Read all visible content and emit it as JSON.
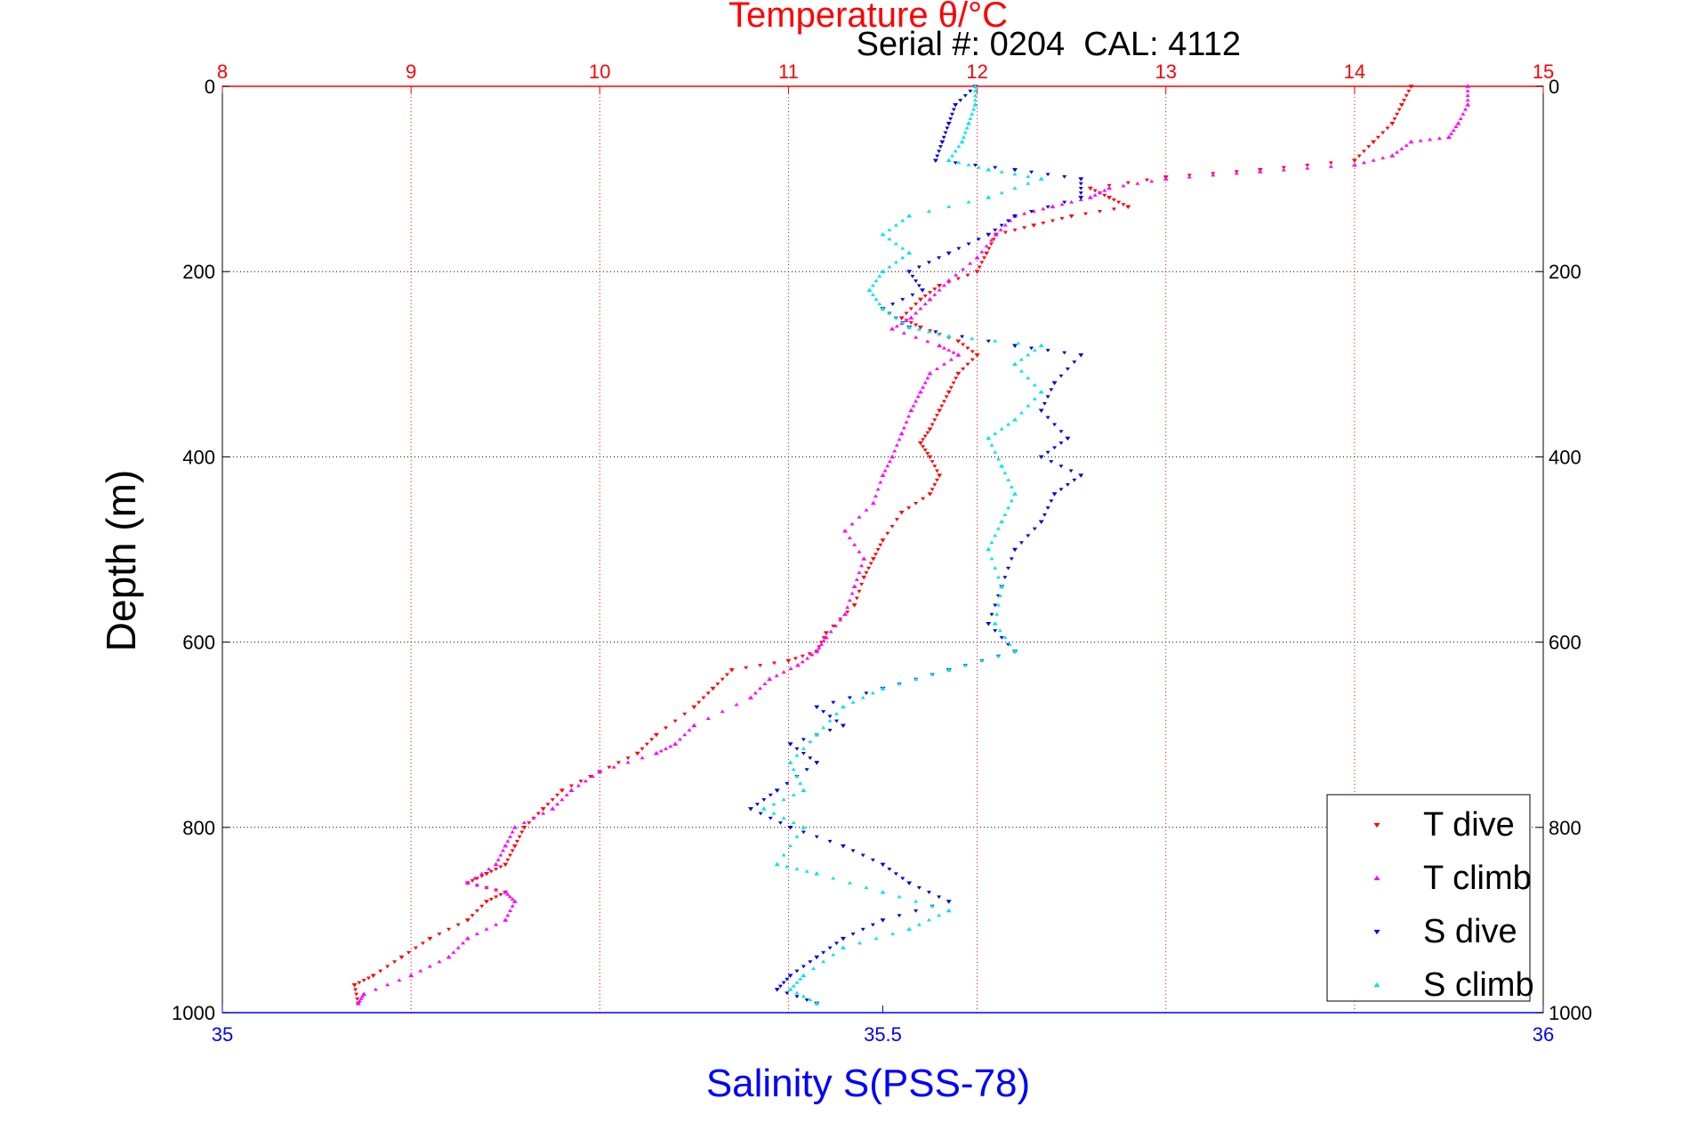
{
  "chart_data": {
    "type": "scatter",
    "title": "Temperature θ/°C",
    "annotation": "Serial #: 0204  CAL: 4112",
    "xlabel": "Salinity S(PSS-78)",
    "ylabel": "Depth (m)",
    "temperature_axis": {
      "range": [
        8,
        15
      ],
      "ticks": [
        "8",
        "9",
        "10",
        "11",
        "12",
        "13",
        "14",
        "15"
      ]
    },
    "salinity_axis": {
      "range": [
        35,
        36
      ],
      "ticks": [
        "35",
        "35.5",
        "36"
      ]
    },
    "depth_axis": {
      "range": [
        0,
        1000
      ],
      "reversed": true,
      "ticks": [
        "0",
        "200",
        "400",
        "600",
        "800",
        "1000"
      ]
    },
    "grid": true,
    "legend_position": "bottom-right",
    "colors": {
      "T dive": "#ff0000",
      "T climb": "#ff00ff",
      "S dive": "#0000dd",
      "S climb": "#00e5e5",
      "temperature_axis": "#ff0000",
      "salinity_axis": "#0000ff"
    },
    "series": [
      {
        "name": "T dive",
        "axis": "temperature",
        "marker": "down-triangle",
        "points": [
          [
            14.3,
            0
          ],
          [
            14.25,
            20
          ],
          [
            14.2,
            40
          ],
          [
            14.1,
            60
          ],
          [
            14.0,
            80
          ],
          [
            13.5,
            90
          ],
          [
            13.0,
            98
          ],
          [
            12.6,
            110
          ],
          [
            12.7,
            120
          ],
          [
            12.8,
            130
          ],
          [
            12.5,
            140
          ],
          [
            12.3,
            150
          ],
          [
            12.1,
            160
          ],
          [
            12.05,
            180
          ],
          [
            12.0,
            200
          ],
          [
            11.8,
            215
          ],
          [
            11.7,
            230
          ],
          [
            11.6,
            250
          ],
          [
            11.7,
            260
          ],
          [
            11.9,
            275
          ],
          [
            12.0,
            290
          ],
          [
            11.9,
            310
          ],
          [
            11.85,
            330
          ],
          [
            11.8,
            350
          ],
          [
            11.75,
            370
          ],
          [
            11.7,
            385
          ],
          [
            11.75,
            400
          ],
          [
            11.8,
            420
          ],
          [
            11.75,
            440
          ],
          [
            11.6,
            460
          ],
          [
            11.5,
            490
          ],
          [
            11.45,
            510
          ],
          [
            11.4,
            530
          ],
          [
            11.35,
            560
          ],
          [
            11.2,
            590
          ],
          [
            11.15,
            610
          ],
          [
            11.0,
            620
          ],
          [
            10.7,
            630
          ],
          [
            10.6,
            650
          ],
          [
            10.5,
            670
          ],
          [
            10.3,
            700
          ],
          [
            10.2,
            720
          ],
          [
            10.0,
            740
          ],
          [
            9.8,
            760
          ],
          [
            9.7,
            780
          ],
          [
            9.6,
            800
          ],
          [
            9.55,
            820
          ],
          [
            9.5,
            840
          ],
          [
            9.4,
            850
          ],
          [
            9.3,
            860
          ],
          [
            9.5,
            870
          ],
          [
            9.4,
            880
          ],
          [
            9.3,
            900
          ],
          [
            9.1,
            920
          ],
          [
            8.95,
            940
          ],
          [
            8.8,
            960
          ],
          [
            8.7,
            970
          ],
          [
            8.72,
            990
          ]
        ]
      },
      {
        "name": "T climb",
        "axis": "temperature",
        "marker": "up-triangle",
        "points": [
          [
            14.6,
            0
          ],
          [
            14.6,
            20
          ],
          [
            14.55,
            40
          ],
          [
            14.5,
            55
          ],
          [
            14.3,
            60
          ],
          [
            14.2,
            75
          ],
          [
            14.0,
            85
          ],
          [
            13.5,
            92
          ],
          [
            13.0,
            100
          ],
          [
            12.7,
            110
          ],
          [
            12.6,
            120
          ],
          [
            12.4,
            130
          ],
          [
            12.2,
            140
          ],
          [
            12.1,
            160
          ],
          [
            12.0,
            185
          ],
          [
            11.85,
            210
          ],
          [
            11.75,
            230
          ],
          [
            11.65,
            250
          ],
          [
            11.55,
            262
          ],
          [
            11.8,
            280
          ],
          [
            11.9,
            290
          ],
          [
            11.75,
            310
          ],
          [
            11.7,
            330
          ],
          [
            11.65,
            350
          ],
          [
            11.6,
            375
          ],
          [
            11.55,
            400
          ],
          [
            11.5,
            420
          ],
          [
            11.45,
            450
          ],
          [
            11.3,
            480
          ],
          [
            11.4,
            510
          ],
          [
            11.35,
            540
          ],
          [
            11.3,
            570
          ],
          [
            11.2,
            595
          ],
          [
            11.15,
            610
          ],
          [
            11.05,
            625
          ],
          [
            10.9,
            640
          ],
          [
            10.8,
            660
          ],
          [
            10.5,
            690
          ],
          [
            10.4,
            710
          ],
          [
            10.3,
            720
          ],
          [
            10.0,
            740
          ],
          [
            9.85,
            760
          ],
          [
            9.75,
            780
          ],
          [
            9.55,
            800
          ],
          [
            9.5,
            820
          ],
          [
            9.45,
            840
          ],
          [
            9.3,
            860
          ],
          [
            9.5,
            870
          ],
          [
            9.55,
            880
          ],
          [
            9.5,
            900
          ],
          [
            9.3,
            920
          ],
          [
            9.2,
            940
          ],
          [
            9.0,
            960
          ],
          [
            8.75,
            980
          ],
          [
            8.72,
            990
          ]
        ]
      },
      {
        "name": "S dive",
        "axis": "salinity",
        "marker": "down-triangle",
        "points": [
          [
            35.57,
            0
          ],
          [
            35.555,
            20
          ],
          [
            35.55,
            40
          ],
          [
            35.545,
            60
          ],
          [
            35.54,
            80
          ],
          [
            35.6,
            90
          ],
          [
            35.65,
            100
          ],
          [
            35.65,
            120
          ],
          [
            35.6,
            140
          ],
          [
            35.58,
            160
          ],
          [
            35.55,
            180
          ],
          [
            35.52,
            200
          ],
          [
            35.53,
            220
          ],
          [
            35.5,
            240
          ],
          [
            35.52,
            260
          ],
          [
            35.6,
            280
          ],
          [
            35.65,
            290
          ],
          [
            35.63,
            320
          ],
          [
            35.62,
            350
          ],
          [
            35.64,
            380
          ],
          [
            35.62,
            400
          ],
          [
            35.65,
            420
          ],
          [
            35.63,
            440
          ],
          [
            35.62,
            470
          ],
          [
            35.6,
            500
          ],
          [
            35.59,
            540
          ],
          [
            35.58,
            580
          ],
          [
            35.6,
            610
          ],
          [
            35.55,
            630
          ],
          [
            35.5,
            650
          ],
          [
            35.45,
            670
          ],
          [
            35.47,
            690
          ],
          [
            35.43,
            710
          ],
          [
            35.45,
            730
          ],
          [
            35.42,
            760
          ],
          [
            35.4,
            780
          ],
          [
            35.43,
            800
          ],
          [
            35.47,
            820
          ],
          [
            35.5,
            840
          ],
          [
            35.52,
            860
          ],
          [
            35.55,
            880
          ],
          [
            35.5,
            900
          ],
          [
            35.47,
            920
          ],
          [
            35.45,
            940
          ],
          [
            35.43,
            960
          ],
          [
            35.42,
            975
          ],
          [
            35.45,
            990
          ]
        ]
      },
      {
        "name": "S climb",
        "axis": "salinity",
        "marker": "up-triangle",
        "points": [
          [
            35.57,
            0
          ],
          [
            35.57,
            20
          ],
          [
            35.565,
            40
          ],
          [
            35.56,
            60
          ],
          [
            35.55,
            80
          ],
          [
            35.58,
            90
          ],
          [
            35.62,
            100
          ],
          [
            35.58,
            120
          ],
          [
            35.52,
            140
          ],
          [
            35.5,
            160
          ],
          [
            35.52,
            180
          ],
          [
            35.5,
            200
          ],
          [
            35.49,
            220
          ],
          [
            35.5,
            240
          ],
          [
            35.52,
            260
          ],
          [
            35.55,
            270
          ],
          [
            35.62,
            280
          ],
          [
            35.6,
            300
          ],
          [
            35.62,
            330
          ],
          [
            35.6,
            360
          ],
          [
            35.58,
            380
          ],
          [
            35.59,
            410
          ],
          [
            35.6,
            440
          ],
          [
            35.59,
            470
          ],
          [
            35.58,
            500
          ],
          [
            35.59,
            540
          ],
          [
            35.585,
            580
          ],
          [
            35.6,
            610
          ],
          [
            35.55,
            630
          ],
          [
            35.5,
            650
          ],
          [
            35.47,
            670
          ],
          [
            35.45,
            700
          ],
          [
            35.43,
            730
          ],
          [
            35.44,
            760
          ],
          [
            35.41,
            780
          ],
          [
            35.44,
            800
          ],
          [
            35.42,
            840
          ],
          [
            35.45,
            850
          ],
          [
            35.5,
            870
          ],
          [
            35.55,
            890
          ],
          [
            35.52,
            910
          ],
          [
            35.47,
            930
          ],
          [
            35.44,
            960
          ],
          [
            35.43,
            975
          ],
          [
            35.45,
            990
          ]
        ]
      }
    ]
  }
}
